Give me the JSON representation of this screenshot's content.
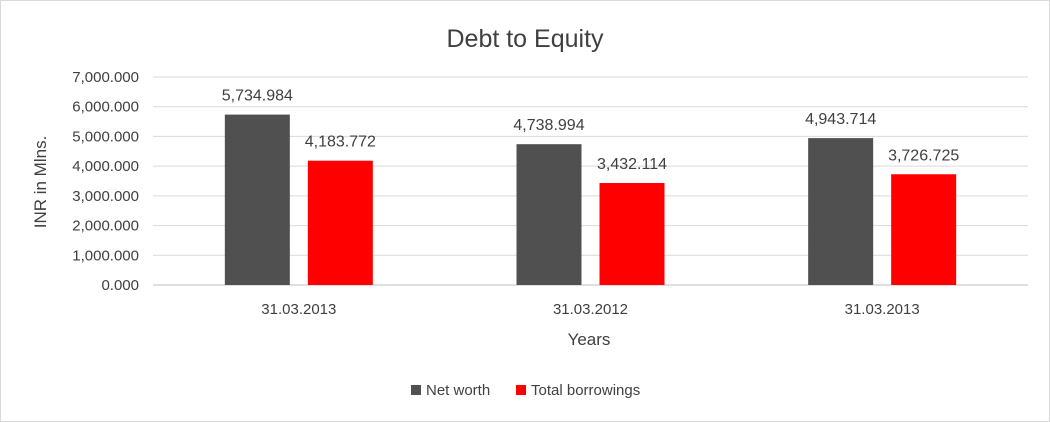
{
  "chart_data": {
    "type": "bar",
    "title": "Debt to Equity",
    "xlabel": "Years",
    "ylabel": "INR in Mlns.",
    "categories": [
      "31.03.2013",
      "31.03.2012",
      "31.03.2013"
    ],
    "series": [
      {
        "name": "Net worth",
        "color": "#505050",
        "values": [
          5734.984,
          4738.994,
          4943.714
        ],
        "labels": [
          "5,734.984",
          "4,738.994",
          "4,943.714"
        ]
      },
      {
        "name": "Total borrowings",
        "color": "#ff0000",
        "values": [
          4183.772,
          3432.114,
          3726.725
        ],
        "labels": [
          "4,183.772",
          "3,432.114",
          "3,726.725"
        ]
      }
    ],
    "ylim": [
      0,
      7000
    ],
    "yticks": [
      0,
      1000,
      2000,
      3000,
      4000,
      5000,
      6000,
      7000
    ],
    "ytick_labels": [
      "0.000",
      "1,000.000",
      "2,000.000",
      "3,000.000",
      "4,000.000",
      "5,000.000",
      "6,000.000",
      "7,000.000"
    ],
    "grid": true,
    "legend_position": "bottom"
  }
}
